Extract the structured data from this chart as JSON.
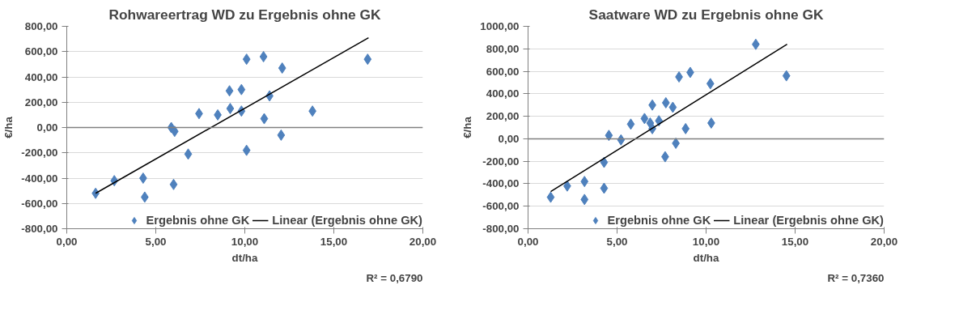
{
  "chart_data": [
    {
      "type": "scatter",
      "title": "Rohwareertrag WD zu Ergebnis ohne GK",
      "xlabel": "dt/ha",
      "ylabel": "€/ha",
      "x": [
        1.62,
        2.67,
        4.29,
        4.38,
        5.87,
        6.06,
        6.82,
        6.0,
        7.43,
        8.48,
        9.14,
        9.18,
        9.81,
        9.81,
        10.1,
        10.1,
        11.05,
        11.09,
        11.39,
        12.1,
        12.04,
        13.8,
        16.9
      ],
      "series": [
        {
          "name": "Ergebnis ohne GK",
          "color": "#4f81bd",
          "marker": "diamond",
          "values": [
            -520,
            -420,
            -400,
            -550,
            0,
            -30,
            -210,
            -450,
            110,
            100,
            290,
            150,
            300,
            130,
            540,
            -180,
            560,
            70,
            250,
            470,
            -60,
            130,
            540
          ]
        },
        {
          "name": "Linear (Ergebnis ohne GK)",
          "type": "line",
          "color": "#000000",
          "x": [
            1.62,
            16.95
          ],
          "values": [
            -520,
            710
          ]
        }
      ],
      "xlim": [
        0,
        20
      ],
      "xticks": [
        {
          "value": 0,
          "label": "0,00"
        },
        {
          "value": 5,
          "label": "5,00"
        },
        {
          "value": 10,
          "label": "10,00"
        },
        {
          "value": 15,
          "label": "15,00"
        },
        {
          "value": 20,
          "label": "20,00"
        }
      ],
      "ylim": [
        -800,
        800
      ],
      "yticks": [
        {
          "value": -800,
          "label": "-800,00"
        },
        {
          "value": -600,
          "label": "-600,00"
        },
        {
          "value": -400,
          "label": "-400,00"
        },
        {
          "value": -200,
          "label": "-200,00"
        },
        {
          "value": 0,
          "label": "0,00"
        },
        {
          "value": 200,
          "label": "200,00"
        },
        {
          "value": 400,
          "label": "400,00"
        },
        {
          "value": 600,
          "label": "600,00"
        },
        {
          "value": 800,
          "label": "800,00"
        }
      ],
      "grid": "y",
      "legend": "bottom right",
      "ref_lines": [
        {
          "axis": "y",
          "value": 0,
          "color": "#808080"
        }
      ],
      "annotations": [
        "R² = 0,6790"
      ]
    },
    {
      "type": "scatter",
      "title": "Saatware WD zu Ergebnis ohne GK",
      "xlabel": "dt/ha",
      "ylabel": "€/ha",
      "x": [
        1.27,
        2.2,
        3.17,
        3.17,
        4.27,
        4.27,
        4.54,
        5.22,
        5.77,
        6.54,
        6.86,
        6.98,
        6.98,
        7.35,
        7.74,
        7.7,
        8.13,
        8.3,
        8.48,
        8.85,
        9.11,
        10.24,
        10.29,
        12.79,
        14.51
      ],
      "series": [
        {
          "name": "Ergebnis ohne GK",
          "color": "#4f81bd",
          "marker": "diamond",
          "values": [
            -520,
            -420,
            -380,
            -540,
            -210,
            -440,
            30,
            -10,
            130,
            180,
            140,
            90,
            300,
            160,
            320,
            -160,
            280,
            -40,
            550,
            90,
            590,
            490,
            140,
            840,
            560
          ]
        },
        {
          "name": "Linear (Ergebnis ohne GK)",
          "type": "line",
          "color": "#000000",
          "x": [
            1.27,
            14.55
          ],
          "values": [
            -470,
            840
          ]
        }
      ],
      "xlim": [
        0,
        20
      ],
      "xticks": [
        {
          "value": 0,
          "label": "0,00"
        },
        {
          "value": 5,
          "label": "5,00"
        },
        {
          "value": 10,
          "label": "10,00"
        },
        {
          "value": 15,
          "label": "15,00"
        },
        {
          "value": 20,
          "label": "20,00"
        }
      ],
      "ylim": [
        -800,
        1000
      ],
      "yticks": [
        {
          "value": -800,
          "label": "-800,00"
        },
        {
          "value": -600,
          "label": "-600,00"
        },
        {
          "value": -400,
          "label": "-400,00"
        },
        {
          "value": -200,
          "label": "-200,00"
        },
        {
          "value": 0,
          "label": "0,00"
        },
        {
          "value": 200,
          "label": "200,00"
        },
        {
          "value": 400,
          "label": "400,00"
        },
        {
          "value": 600,
          "label": "600,00"
        },
        {
          "value": 800,
          "label": "800,00"
        },
        {
          "value": 1000,
          "label": "1000,00"
        }
      ],
      "grid": "y",
      "legend": "bottom right",
      "ref_lines": [
        {
          "axis": "y",
          "value": 0,
          "color": "#808080"
        }
      ],
      "annotations": [
        "R² = 0,7360"
      ]
    }
  ]
}
